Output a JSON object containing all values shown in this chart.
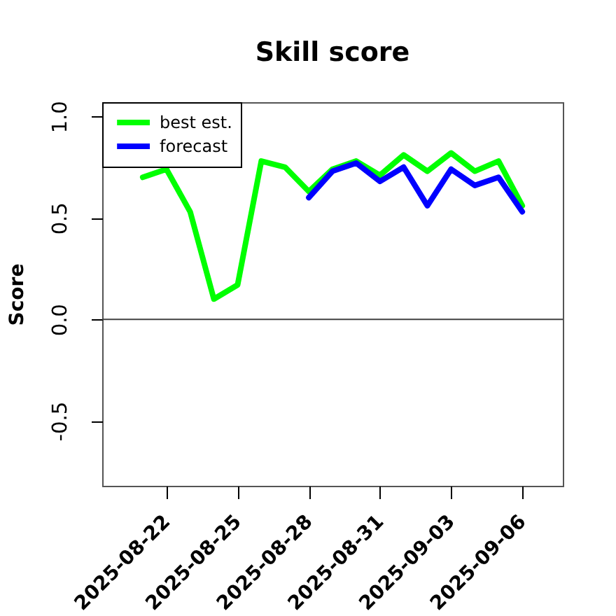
{
  "chart_data": {
    "type": "line",
    "title": "Skill score",
    "ylabel": "Score",
    "x": [
      "2025-08-21",
      "2025-08-22",
      "2025-08-23",
      "2025-08-24",
      "2025-08-25",
      "2025-08-26",
      "2025-08-27",
      "2025-08-28",
      "2025-08-29",
      "2025-08-30",
      "2025-08-31",
      "2025-09-01",
      "2025-09-02",
      "2025-09-03",
      "2025-09-04",
      "2025-09-05",
      "2025-09-06"
    ],
    "series": [
      {
        "name": "best est.",
        "color": "#00ff00",
        "values": [
          0.7,
          0.74,
          0.53,
          0.1,
          0.17,
          0.78,
          0.75,
          0.63,
          0.74,
          0.78,
          0.71,
          0.81,
          0.73,
          0.82,
          0.73,
          0.78,
          0.56
        ]
      },
      {
        "name": "forecast",
        "color": "#0000ff",
        "x": [
          "2025-08-28",
          "2025-08-29",
          "2025-08-30",
          "2025-08-31",
          "2025-09-01",
          "2025-09-02",
          "2025-09-03",
          "2025-09-04",
          "2025-09-05",
          "2025-09-06"
        ],
        "values": [
          0.6,
          0.73,
          0.77,
          0.68,
          0.75,
          0.56,
          0.74,
          0.66,
          0.7,
          0.53
        ]
      }
    ],
    "xlim": [
      "2025-08-19T07:00",
      "2025-09-07T17:00"
    ],
    "xticks": [
      "2025-08-22",
      "2025-08-25",
      "2025-08-28",
      "2025-08-31",
      "2025-09-03",
      "2025-09-06"
    ],
    "ylim": [
      -0.82,
      1.07
    ],
    "yticks": [
      -0.5,
      {
        "value": 0,
        "label": "0.0"
      },
      0.5,
      {
        "value": 1,
        "label": "1.0"
      }
    ],
    "ref_lines": [
      {
        "axis": "y",
        "value": 0,
        "color": "#404040"
      }
    ],
    "legend": "top left"
  }
}
